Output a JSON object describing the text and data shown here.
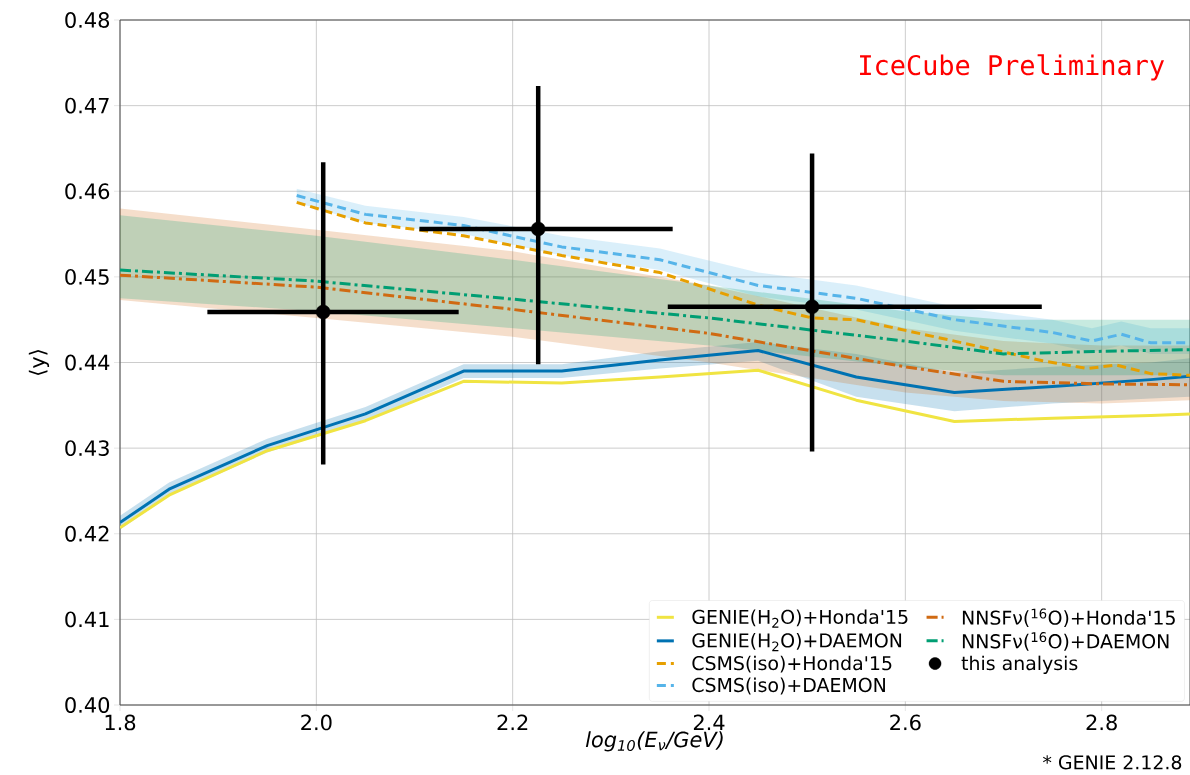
{
  "chart_data": {
    "type": "line",
    "xlabel": "log$_{10}$(E$_{ν}$/GeV)",
    "ylabel": "⟨y⟩",
    "xlim": [
      1.8,
      2.89
    ],
    "ylim": [
      0.4,
      0.48
    ],
    "xticks": [
      1.8,
      {
        "value": 2.0,
        "label": "2.0"
      },
      2.2,
      2.4,
      2.6,
      2.8
    ],
    "yticks": [
      {
        "value": 0.4,
        "label": "0.40"
      },
      0.41,
      0.42,
      0.43,
      0.44,
      0.45,
      0.46,
      0.47,
      0.48
    ],
    "grid": true,
    "legend": "bottom right",
    "annotations": [
      "IceCube Preliminary",
      "* GENIE 2.12.8"
    ],
    "series": [
      {
        "name": "GENIE(H$_{2}$O)+Honda'15",
        "color": "#f0e442",
        "line_style": "solid",
        "x": [
          1.8,
          1.85,
          1.95,
          2.05,
          2.15,
          2.25,
          2.35,
          2.45,
          2.55,
          2.65,
          2.75,
          2.85,
          2.89
        ],
        "values": [
          0.4207,
          0.4245,
          0.4297,
          0.4332,
          0.4378,
          0.4376,
          0.4383,
          0.4391,
          0.4356,
          0.4331,
          0.4335,
          0.4338,
          0.434
        ]
      },
      {
        "name": "GENIE(H$_{2}$O)+DAEMON",
        "color": "#0072b2",
        "line_style": "solid",
        "x": [
          1.8,
          1.85,
          1.95,
          2.05,
          2.15,
          2.25,
          2.35,
          2.45,
          2.55,
          2.65,
          2.75,
          2.85,
          2.89
        ],
        "values": [
          0.4213,
          0.4252,
          0.4303,
          0.434,
          0.439,
          0.439,
          0.4403,
          0.4414,
          0.4383,
          0.4365,
          0.4372,
          0.438,
          0.4384
        ],
        "lower": [
          0.4205,
          0.4244,
          0.4295,
          0.4332,
          0.4382,
          0.4382,
          0.4393,
          0.4402,
          0.436,
          0.4343,
          0.4352,
          0.4358,
          0.436
        ],
        "upper": [
          0.4221,
          0.426,
          0.4311,
          0.4348,
          0.4398,
          0.4398,
          0.4413,
          0.4424,
          0.441,
          0.4388,
          0.4395,
          0.44,
          0.4405
        ]
      },
      {
        "name": "CSMS(iso)+Honda'15",
        "color": "#e69f00",
        "line_style": "dashed",
        "x": [
          1.98,
          2.05,
          2.15,
          2.25,
          2.35,
          2.45,
          2.505,
          2.55,
          2.65,
          2.74,
          2.785,
          2.815,
          2.85,
          2.89
        ],
        "values": [
          0.4587,
          0.4563,
          0.4548,
          0.4525,
          0.4505,
          0.4467,
          0.4452,
          0.445,
          0.4425,
          0.4402,
          0.4393,
          0.4397,
          0.4387,
          0.4385
        ]
      },
      {
        "name": "CSMS(iso)+DAEMON",
        "color": "#56b4e9",
        "line_style": "dashed",
        "x": [
          1.98,
          2.05,
          2.15,
          2.25,
          2.35,
          2.45,
          2.55,
          2.65,
          2.75,
          2.79,
          2.82,
          2.85,
          2.89
        ],
        "values": [
          0.4595,
          0.4573,
          0.456,
          0.4535,
          0.452,
          0.449,
          0.4475,
          0.445,
          0.4435,
          0.4425,
          0.4433,
          0.4423,
          0.4423
        ],
        "lower": [
          0.4587,
          0.4563,
          0.455,
          0.4525,
          0.4508,
          0.4477,
          0.4462,
          0.4437,
          0.4422,
          0.4412,
          0.442,
          0.441,
          0.441
        ],
        "upper": [
          0.4603,
          0.4583,
          0.457,
          0.4548,
          0.4533,
          0.4505,
          0.449,
          0.4465,
          0.445,
          0.444,
          0.4448,
          0.444,
          0.444
        ]
      },
      {
        "name": "NNSFν($^{16}$O)+Honda'15",
        "color": "#d06a12",
        "line_style": "dashdot",
        "x": [
          1.8,
          2.0,
          2.2,
          2.4,
          2.6,
          2.7,
          2.8,
          2.89
        ],
        "values": [
          0.4502,
          0.4488,
          0.4462,
          0.4434,
          0.4395,
          0.4378,
          0.4375,
          0.4374
        ],
        "lower": [
          0.4473,
          0.4452,
          0.443,
          0.44,
          0.4365,
          0.4355,
          0.4352,
          0.4356
        ],
        "upper": [
          0.458,
          0.4555,
          0.453,
          0.449,
          0.444,
          0.4425,
          0.442,
          0.442
        ]
      },
      {
        "name": "NNSFν($^{16}$O)+DAEMON",
        "color": "#009e73",
        "line_style": "dashdot",
        "x": [
          1.8,
          2.0,
          2.2,
          2.4,
          2.6,
          2.7,
          2.8,
          2.89
        ],
        "values": [
          0.4508,
          0.4495,
          0.4474,
          0.4452,
          0.4425,
          0.441,
          0.4413,
          0.4415
        ],
        "lower": [
          0.4475,
          0.446,
          0.444,
          0.442,
          0.4395,
          0.4385,
          0.4385,
          0.4385
        ],
        "upper": [
          0.4572,
          0.4548,
          0.452,
          0.449,
          0.446,
          0.445,
          0.445,
          0.445
        ]
      },
      {
        "name": "this analysis",
        "type": "scatter",
        "color": "#000000",
        "marker": "circle",
        "x": [
          2.007,
          2.226,
          2.505
        ],
        "values": [
          0.4459,
          0.4556,
          0.4465
        ],
        "errors": [
          [
            0.4281,
            0.4634
          ],
          [
            0.4398,
            0.4723
          ],
          [
            0.4296,
            0.4644
          ]
        ],
        "xerrors": [
          [
            1.889,
            2.145
          ],
          [
            2.105,
            2.363
          ],
          [
            2.358,
            2.739
          ]
        ]
      }
    ]
  }
}
